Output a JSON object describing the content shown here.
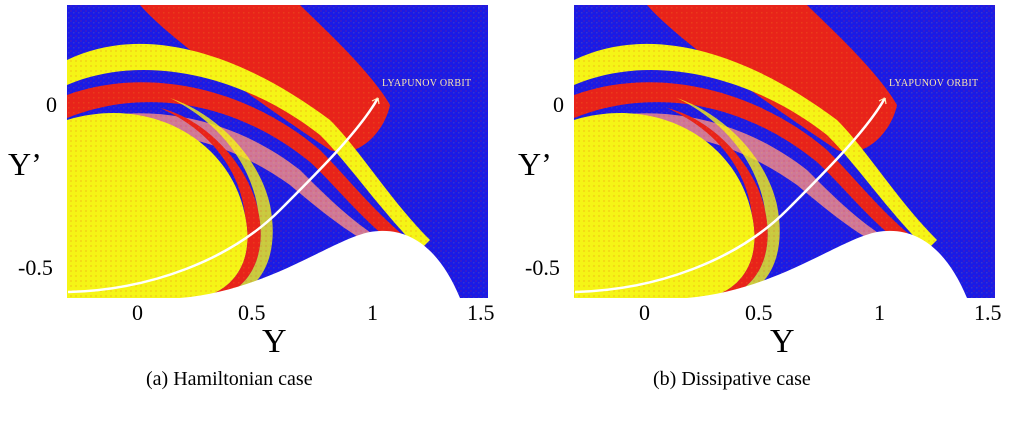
{
  "chart_data": [
    {
      "type": "heatmap",
      "caption": "(a) Hamiltonian case",
      "xlabel": "Y",
      "ylabel": "Y’",
      "xlim": [
        -0.33,
        1.52
      ],
      "ylim": [
        -0.6,
        0.35
      ],
      "xticks": [
        "0",
        "0.5",
        "1",
        "1.5"
      ],
      "yticks": [
        "0",
        "-0.5"
      ],
      "annotation": "LYAPUNOV ORBIT",
      "colors": {
        "blue": "#1a1ae6",
        "red": "#e8231a",
        "yellow": "#f5f516",
        "pink": "#f08a8a",
        "white": "#ffffff"
      }
    },
    {
      "type": "heatmap",
      "caption": "(b) Dissipative case",
      "xlabel": "Y",
      "ylabel": "Y’",
      "xlim": [
        -0.33,
        1.52
      ],
      "ylim": [
        -0.6,
        0.35
      ],
      "xticks": [
        "0",
        "0.5",
        "1",
        "1.5"
      ],
      "yticks": [
        "0",
        "-0.5"
      ],
      "annotation": "LYAPUNOV ORBIT",
      "colors": {
        "blue": "#1a1ae6",
        "red": "#e8231a",
        "yellow": "#f5f516",
        "pink": "#f08a8a",
        "white": "#ffffff"
      }
    }
  ]
}
